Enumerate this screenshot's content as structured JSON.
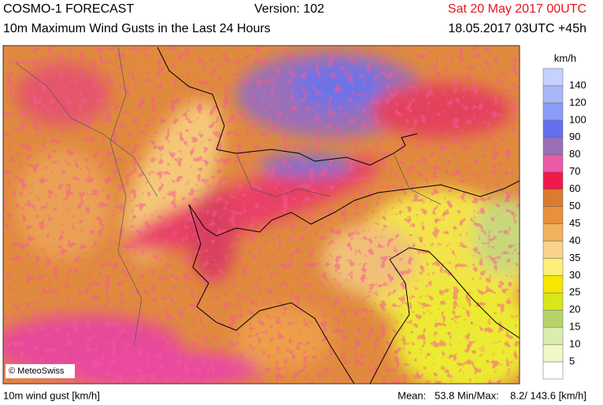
{
  "header": {
    "model": "COSMO-1 FORECAST",
    "version": "Version: 102",
    "valid": "Sat 20 May 2017 00UTC",
    "product": "10m Maximum Wind Gusts in the Last 24 Hours",
    "run": "18.05.2017 03UTC +45h"
  },
  "map": {
    "credit": "© MeteoSwiss"
  },
  "legend": {
    "unit": "km/h",
    "labels": [
      5,
      10,
      15,
      20,
      25,
      30,
      35,
      40,
      45,
      50,
      60,
      70,
      80,
      90,
      100,
      120,
      140
    ],
    "colors": [
      "#ffffff",
      "#f2f7c8",
      "#dcedb0",
      "#b6d36b",
      "#d9e619",
      "#f7e600",
      "#fbef7a",
      "#f7d38a",
      "#f0b25a",
      "#e8903d",
      "#dc7a2d",
      "#ee1a4b",
      "#e95aa8",
      "#9a6fb7",
      "#6470ee",
      "#8a9cf6",
      "#a8b8fb",
      "#c6d2fd"
    ]
  },
  "footer": {
    "left": "10m wind gust [km/h]",
    "right": "Mean:   53.8 Min/Max:    8.2/ 143.6 [km/h]"
  }
}
